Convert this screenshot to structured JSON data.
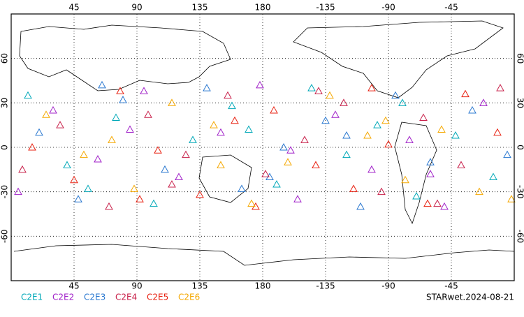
{
  "chart_data": {
    "type": "scatter",
    "xlim": [
      0,
      360
    ],
    "ylim": [
      -90,
      90
    ],
    "xticks": [
      45,
      90,
      135,
      180,
      {
        "value": 225,
        "label": "-135"
      },
      {
        "value": 270,
        "label": "-90"
      },
      {
        "value": 315,
        "label": "-45"
      }
    ],
    "yticks": [
      60,
      30,
      0,
      -30,
      -60
    ],
    "grid": true,
    "footer": "STARwet.2024-08-21",
    "series": [
      {
        "name": "C2E1",
        "color": "#00a8b8",
        "x": [
          12,
          40,
          75,
          102,
          130,
          158,
          190,
          215,
          240,
          262,
          290,
          318,
          345,
          55,
          170,
          280
        ],
        "values": [
          35,
          -12,
          20,
          -38,
          5,
          28,
          -25,
          40,
          -5,
          15,
          -33,
          8,
          -20,
          -28,
          12,
          30
        ]
      },
      {
        "name": "C2E2",
        "color": "#a020c8",
        "x": [
          5,
          30,
          62,
          95,
          120,
          150,
          178,
          205,
          232,
          258,
          285,
          310,
          338,
          85,
          200,
          300
        ],
        "values": [
          -30,
          25,
          -8,
          38,
          -20,
          10,
          42,
          -35,
          22,
          -15,
          5,
          -40,
          30,
          12,
          -2,
          -18
        ]
      },
      {
        "name": "C2E3",
        "color": "#2a78d0",
        "x": [
          20,
          48,
          80,
          110,
          140,
          165,
          195,
          225,
          250,
          275,
          300,
          330,
          355,
          65,
          185,
          240
        ],
        "values": [
          10,
          -35,
          32,
          -15,
          40,
          -28,
          0,
          18,
          -40,
          35,
          -10,
          25,
          -5,
          42,
          -20,
          8
        ]
      },
      {
        "name": "C2E4",
        "color": "#c8204a",
        "x": [
          8,
          35,
          70,
          98,
          125,
          155,
          182,
          210,
          238,
          265,
          295,
          322,
          350,
          115,
          220,
          305
        ],
        "values": [
          -15,
          15,
          -40,
          22,
          -5,
          35,
          -18,
          5,
          30,
          -30,
          20,
          -12,
          40,
          -25,
          38,
          -38
        ]
      },
      {
        "name": "C2E5",
        "color": "#e82010",
        "x": [
          15,
          45,
          78,
          105,
          135,
          160,
          188,
          218,
          245,
          270,
          298,
          325,
          348,
          92,
          175,
          258
        ],
        "values": [
          0,
          -22,
          38,
          -2,
          -32,
          18,
          25,
          -12,
          -28,
          2,
          -38,
          36,
          10,
          -35,
          -40,
          40
        ]
      },
      {
        "name": "C2E6",
        "color": "#f5a800",
        "x": [
          25,
          52,
          88,
          115,
          145,
          172,
          198,
          228,
          255,
          282,
          308,
          335,
          358,
          72,
          150,
          268
        ],
        "values": [
          22,
          -5,
          -28,
          30,
          15,
          -38,
          -10,
          35,
          8,
          -22,
          12,
          -30,
          -35,
          5,
          -12,
          18
        ]
      }
    ]
  }
}
